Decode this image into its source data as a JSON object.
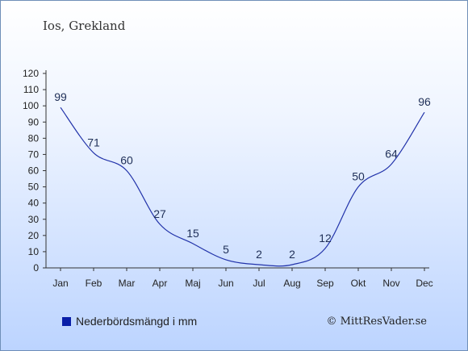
{
  "title": "Ios, Grekland",
  "legend_label": "Nederbördsmängd i mm",
  "credit": "© MittResVader.se",
  "colors": {
    "line": "#2233aa",
    "swatch": "#0a1fa8",
    "axis": "#333333",
    "label": "#1f2f57"
  },
  "chart_data": {
    "type": "line",
    "categories": [
      "Jan",
      "Feb",
      "Mar",
      "Apr",
      "Maj",
      "Jun",
      "Jul",
      "Aug",
      "Sep",
      "Okt",
      "Nov",
      "Dec"
    ],
    "series": [
      {
        "name": "Nederbördsmängd i mm",
        "values": [
          99,
          71,
          60,
          27,
          15,
          5,
          2,
          2,
          12,
          50,
          64,
          96
        ]
      }
    ],
    "yticks": [
      0,
      10,
      20,
      30,
      40,
      50,
      60,
      70,
      80,
      90,
      100,
      110,
      120
    ],
    "ylim": [
      0,
      120
    ],
    "grid": false,
    "legend_position": "bottom-left"
  }
}
